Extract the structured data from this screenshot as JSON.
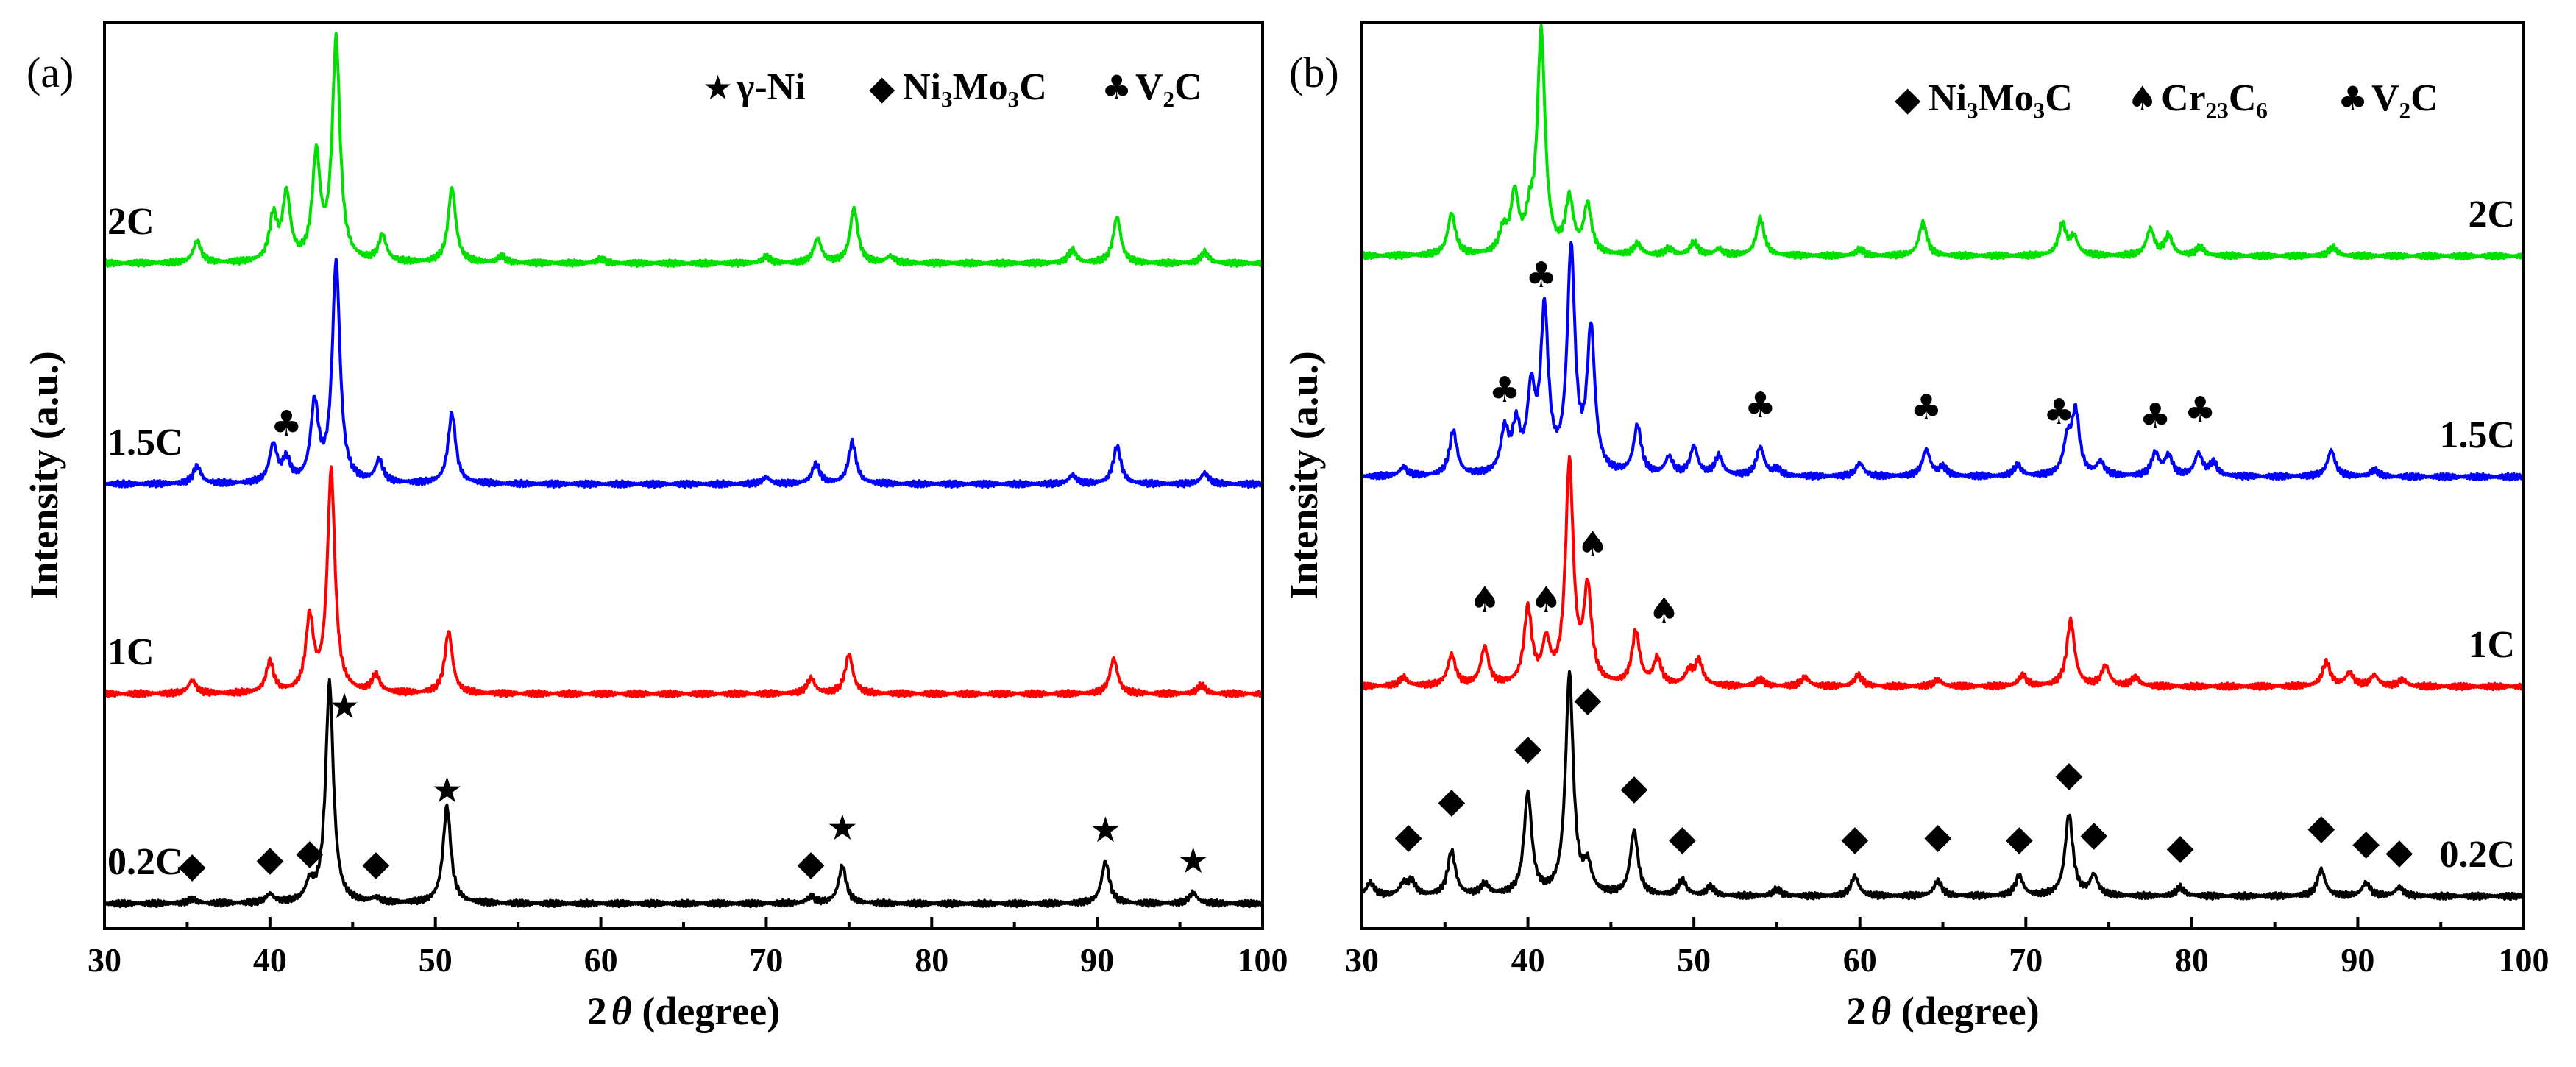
{
  "chart_data": [
    {
      "type": "line",
      "panel_label": "(a)",
      "xlabel_prefix": "2",
      "xlabel_theta": "θ",
      "xlabel_suffix": " (degree)",
      "ylabel": "Intensity (a.u.)",
      "xlim": [
        30,
        100
      ],
      "xticks": [
        30,
        40,
        50,
        60,
        70,
        80,
        90,
        100
      ],
      "grid": false,
      "legend": [
        {
          "icon": "star",
          "label": "γ-Ni"
        },
        {
          "icon": "diamond",
          "label": "Ni₃Mo₃C"
        },
        {
          "icon": "club",
          "label": "V₂C"
        }
      ],
      "series": [
        {
          "name": "0.2C",
          "color": "#000000",
          "offset": 0,
          "peaks": [
            [
              35.3,
              2
            ],
            [
              40,
              4
            ],
            [
              42.4,
              8
            ],
            [
              43.6,
              100
            ],
            [
              46.4,
              2
            ],
            [
              50.7,
              44
            ],
            [
              72.7,
              3
            ],
            [
              74.6,
              17
            ],
            [
              90.5,
              19
            ],
            [
              95.8,
              5
            ]
          ],
          "markers": [
            {
              "x": 35.3,
              "h": 8,
              "icon": "diamond"
            },
            {
              "x": 40,
              "h": 11,
              "icon": "diamond"
            },
            {
              "x": 42.4,
              "h": 14,
              "icon": "diamond"
            },
            {
              "x": 44.5,
              "h": 80,
              "icon": "star"
            },
            {
              "x": 46.4,
              "h": 9,
              "icon": "diamond"
            },
            {
              "x": 50.7,
              "h": 42,
              "icon": "star"
            },
            {
              "x": 72.7,
              "h": 9,
              "icon": "diamond"
            },
            {
              "x": 74.6,
              "h": 25,
              "icon": "star"
            },
            {
              "x": 90.5,
              "h": 24,
              "icon": "star"
            },
            {
              "x": 95.8,
              "h": 10,
              "icon": "star"
            }
          ]
        },
        {
          "name": "1C",
          "color": "#ff0000",
          "offset": 95,
          "peaks": [
            [
              35.3,
              6
            ],
            [
              40,
              14
            ],
            [
              42.4,
              33
            ],
            [
              43.7,
              100
            ],
            [
              46.4,
              8
            ],
            [
              50.8,
              28
            ],
            [
              72.7,
              7
            ],
            [
              75.0,
              18
            ],
            [
              91.0,
              16
            ],
            [
              96.3,
              4
            ]
          ],
          "markers": []
        },
        {
          "name": "1.5C",
          "color": "#0000ff",
          "offset": 190,
          "peaks": [
            [
              35.6,
              8
            ],
            [
              40.2,
              17
            ],
            [
              41.0,
              10
            ],
            [
              42.7,
              35
            ],
            [
              44.0,
              100
            ],
            [
              46.6,
              10
            ],
            [
              51.0,
              32
            ],
            [
              70,
              3
            ],
            [
              73.0,
              9
            ],
            [
              75.2,
              19
            ],
            [
              88.5,
              4
            ],
            [
              91.2,
              17
            ],
            [
              96.5,
              5
            ]
          ],
          "markers": [
            {
              "x": 41.0,
              "h": 18,
              "icon": "club"
            }
          ]
        },
        {
          "name": "2C",
          "color": "#00e000",
          "offset": 290,
          "peaks": [
            [
              35.6,
              10
            ],
            [
              40.2,
              20
            ],
            [
              41.0,
              30
            ],
            [
              42.8,
              47
            ],
            [
              44.0,
              100
            ],
            [
              46.8,
              12
            ],
            [
              51.0,
              34
            ],
            [
              54,
              3
            ],
            [
              60,
              2
            ],
            [
              70,
              3
            ],
            [
              73.1,
              11
            ],
            [
              75.3,
              25
            ],
            [
              77.5,
              3
            ],
            [
              88.5,
              6
            ],
            [
              91.2,
              21
            ],
            [
              96.5,
              5
            ]
          ],
          "markers": []
        }
      ]
    },
    {
      "type": "line",
      "panel_label": "(b)",
      "xlabel_prefix": "2",
      "xlabel_theta": "θ",
      "xlabel_suffix": " (degree)",
      "ylabel": "Intensity (a.u.)",
      "xlim": [
        30,
        100
      ],
      "xticks": [
        30,
        40,
        50,
        60,
        70,
        80,
        90,
        100
      ],
      "grid": false,
      "legend": [
        {
          "icon": "diamond",
          "label": "Ni₃Mo₃C"
        },
        {
          "icon": "spade",
          "label": "Cr₂₃C₆"
        },
        {
          "icon": "club",
          "label": "V₂C"
        }
      ],
      "series": [
        {
          "name": "0.2C",
          "color": "#000000",
          "offset": 0,
          "peaks": [
            [
              30.5,
              6
            ],
            [
              32.5,
              5
            ],
            [
              33,
              6
            ],
            [
              35.4,
              20
            ],
            [
              37.4,
              5
            ],
            [
              40,
              46
            ],
            [
              42.5,
              100
            ],
            [
              43.6,
              12
            ],
            [
              46.4,
              29
            ],
            [
              49.3,
              7
            ],
            [
              51,
              4
            ],
            [
              55,
              3
            ],
            [
              59.7,
              9
            ],
            [
              64.7,
              7
            ],
            [
              69.6,
              9
            ],
            [
              72.6,
              37
            ],
            [
              74.1,
              9
            ],
            [
              79.3,
              4
            ],
            [
              87.8,
              12
            ],
            [
              90.5,
              6
            ],
            [
              92.5,
              4
            ]
          ],
          "markers": [
            {
              "x": 32.8,
              "h": 18,
              "icon": "diamond"
            },
            {
              "x": 35.4,
              "h": 34,
              "icon": "diamond"
            },
            {
              "x": 40,
              "h": 58,
              "icon": "diamond"
            },
            {
              "x": 43.6,
              "h": 80,
              "icon": "diamond"
            },
            {
              "x": 46.4,
              "h": 40,
              "icon": "diamond"
            },
            {
              "x": 49.3,
              "h": 17,
              "icon": "diamond"
            },
            {
              "x": 59.7,
              "h": 17,
              "icon": "diamond"
            },
            {
              "x": 64.7,
              "h": 18,
              "icon": "diamond"
            },
            {
              "x": 69.6,
              "h": 17,
              "icon": "diamond"
            },
            {
              "x": 72.6,
              "h": 46,
              "icon": "diamond"
            },
            {
              "x": 74.1,
              "h": 19,
              "icon": "diamond"
            },
            {
              "x": 79.3,
              "h": 13,
              "icon": "diamond"
            },
            {
              "x": 87.8,
              "h": 22,
              "icon": "diamond"
            },
            {
              "x": 90.5,
              "h": 15,
              "icon": "diamond"
            },
            {
              "x": 92.5,
              "h": 11,
              "icon": "diamond"
            }
          ]
        },
        {
          "name": "1C",
          "color": "#ff0000",
          "offset": 95,
          "peaks": [
            [
              32.5,
              4
            ],
            [
              35.4,
              14
            ],
            [
              37.4,
              17
            ],
            [
              40,
              34
            ],
            [
              41.1,
              18
            ],
            [
              42.5,
              100
            ],
            [
              43.6,
              42
            ],
            [
              46.5,
              24
            ],
            [
              47.8,
              12
            ],
            [
              49.7,
              6
            ],
            [
              50.3,
              11
            ],
            [
              54,
              3
            ],
            [
              56.7,
              4
            ],
            [
              59.9,
              5
            ],
            [
              64.7,
              3
            ],
            [
              69.8,
              5
            ],
            [
              72.7,
              30
            ],
            [
              74.8,
              9
            ],
            [
              76.6,
              4
            ],
            [
              88.1,
              11
            ],
            [
              89.5,
              6
            ],
            [
              91.0,
              5
            ],
            [
              92.7,
              3
            ]
          ],
          "markers": [
            {
              "x": 37.4,
              "h": 30,
              "icon": "spade"
            },
            {
              "x": 41.1,
              "h": 30,
              "icon": "spade"
            },
            {
              "x": 43.9,
              "h": 55,
              "icon": "spade"
            },
            {
              "x": 48.2,
              "h": 25,
              "icon": "spade"
            }
          ]
        },
        {
          "name": "1.5C",
          "color": "#0000ff",
          "offset": 190,
          "peaks": [
            [
              32.5,
              4
            ],
            [
              35.5,
              20
            ],
            [
              38.6,
              19
            ],
            [
              39.3,
              20
            ],
            [
              40.2,
              35
            ],
            [
              41.0,
              72
            ],
            [
              42.6,
              100
            ],
            [
              43.8,
              64
            ],
            [
              46.6,
              22
            ],
            [
              48.5,
              8
            ],
            [
              50.0,
              13
            ],
            [
              51.5,
              9
            ],
            [
              54.0,
              13
            ],
            [
              55,
              3
            ],
            [
              60,
              6
            ],
            [
              64.0,
              12
            ],
            [
              65,
              4
            ],
            [
              69.5,
              5
            ],
            [
              72.5,
              15
            ],
            [
              73.0,
              28
            ],
            [
              74.5,
              6
            ],
            [
              77.8,
              10
            ],
            [
              78.6,
              9
            ],
            [
              80.4,
              10
            ],
            [
              81.3,
              6
            ],
            [
              88.4,
              12
            ],
            [
              91,
              3
            ]
          ],
          "markers": [
            {
              "x": 38.6,
              "h": 30,
              "icon": "club"
            },
            {
              "x": 40.8,
              "h": 82,
              "icon": "club"
            },
            {
              "x": 54.0,
              "h": 23,
              "icon": "club"
            },
            {
              "x": 64.0,
              "h": 22,
              "icon": "club"
            },
            {
              "x": 72.0,
              "h": 20,
              "icon": "club"
            },
            {
              "x": 77.8,
              "h": 18,
              "icon": "club"
            },
            {
              "x": 80.5,
              "h": 21,
              "icon": "club"
            }
          ]
        },
        {
          "name": "2C",
          "color": "#00e000",
          "offset": 290,
          "peaks": [
            [
              35.4,
              19
            ],
            [
              38.5,
              10
            ],
            [
              39.2,
              26
            ],
            [
              40.1,
              13
            ],
            [
              40.8,
              100
            ],
            [
              42.5,
              24
            ],
            [
              43.6,
              22
            ],
            [
              46.6,
              5
            ],
            [
              48.5,
              3
            ],
            [
              50.0,
              6
            ],
            [
              51.5,
              3
            ],
            [
              54.0,
              17
            ],
            [
              60,
              3
            ],
            [
              63.8,
              15
            ],
            [
              72.2,
              14
            ],
            [
              72.9,
              8
            ],
            [
              77.5,
              12
            ],
            [
              78.6,
              9
            ],
            [
              80.5,
              4
            ],
            [
              88.5,
              4
            ]
          ],
          "markers": []
        }
      ]
    }
  ]
}
